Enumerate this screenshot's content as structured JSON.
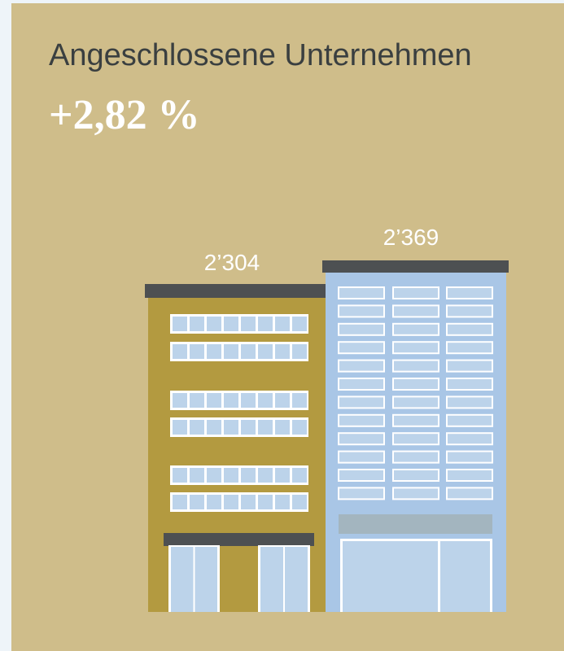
{
  "header": {
    "title": "Angeschlossene Unternehmen",
    "change": "+2,82 %"
  },
  "buildings": [
    {
      "label": "2’304"
    },
    {
      "label": "2’369"
    }
  ]
}
